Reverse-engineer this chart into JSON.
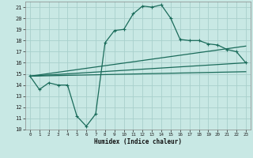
{
  "xlabel": "Humidex (Indice chaleur)",
  "xlim": [
    -0.5,
    23.5
  ],
  "ylim": [
    10,
    21.5
  ],
  "yticks": [
    10,
    11,
    12,
    13,
    14,
    15,
    16,
    17,
    18,
    19,
    20,
    21
  ],
  "xticks": [
    0,
    1,
    2,
    3,
    4,
    5,
    6,
    7,
    8,
    9,
    10,
    11,
    12,
    13,
    14,
    15,
    16,
    17,
    18,
    19,
    20,
    21,
    22,
    23
  ],
  "bg_color": "#c8e8e4",
  "grid_color": "#a8d0cc",
  "line_color": "#1a6b5a",
  "main_series": {
    "x": [
      0,
      1,
      2,
      3,
      4,
      5,
      6,
      7,
      8,
      9,
      10,
      11,
      12,
      13,
      14,
      15,
      16,
      17,
      18,
      19,
      20,
      21,
      22,
      23
    ],
    "y": [
      14.8,
      13.6,
      14.2,
      14.0,
      14.0,
      11.2,
      10.3,
      11.4,
      17.8,
      18.9,
      19.0,
      20.4,
      21.1,
      21.0,
      21.2,
      20.0,
      18.1,
      18.0,
      18.0,
      17.7,
      17.6,
      17.2,
      17.0,
      16.0
    ]
  },
  "straight_lines": [
    {
      "x": [
        0,
        23
      ],
      "y": [
        14.8,
        16.0
      ]
    },
    {
      "x": [
        0,
        23
      ],
      "y": [
        14.8,
        17.5
      ]
    },
    {
      "x": [
        0,
        23
      ],
      "y": [
        14.8,
        15.2
      ]
    }
  ]
}
